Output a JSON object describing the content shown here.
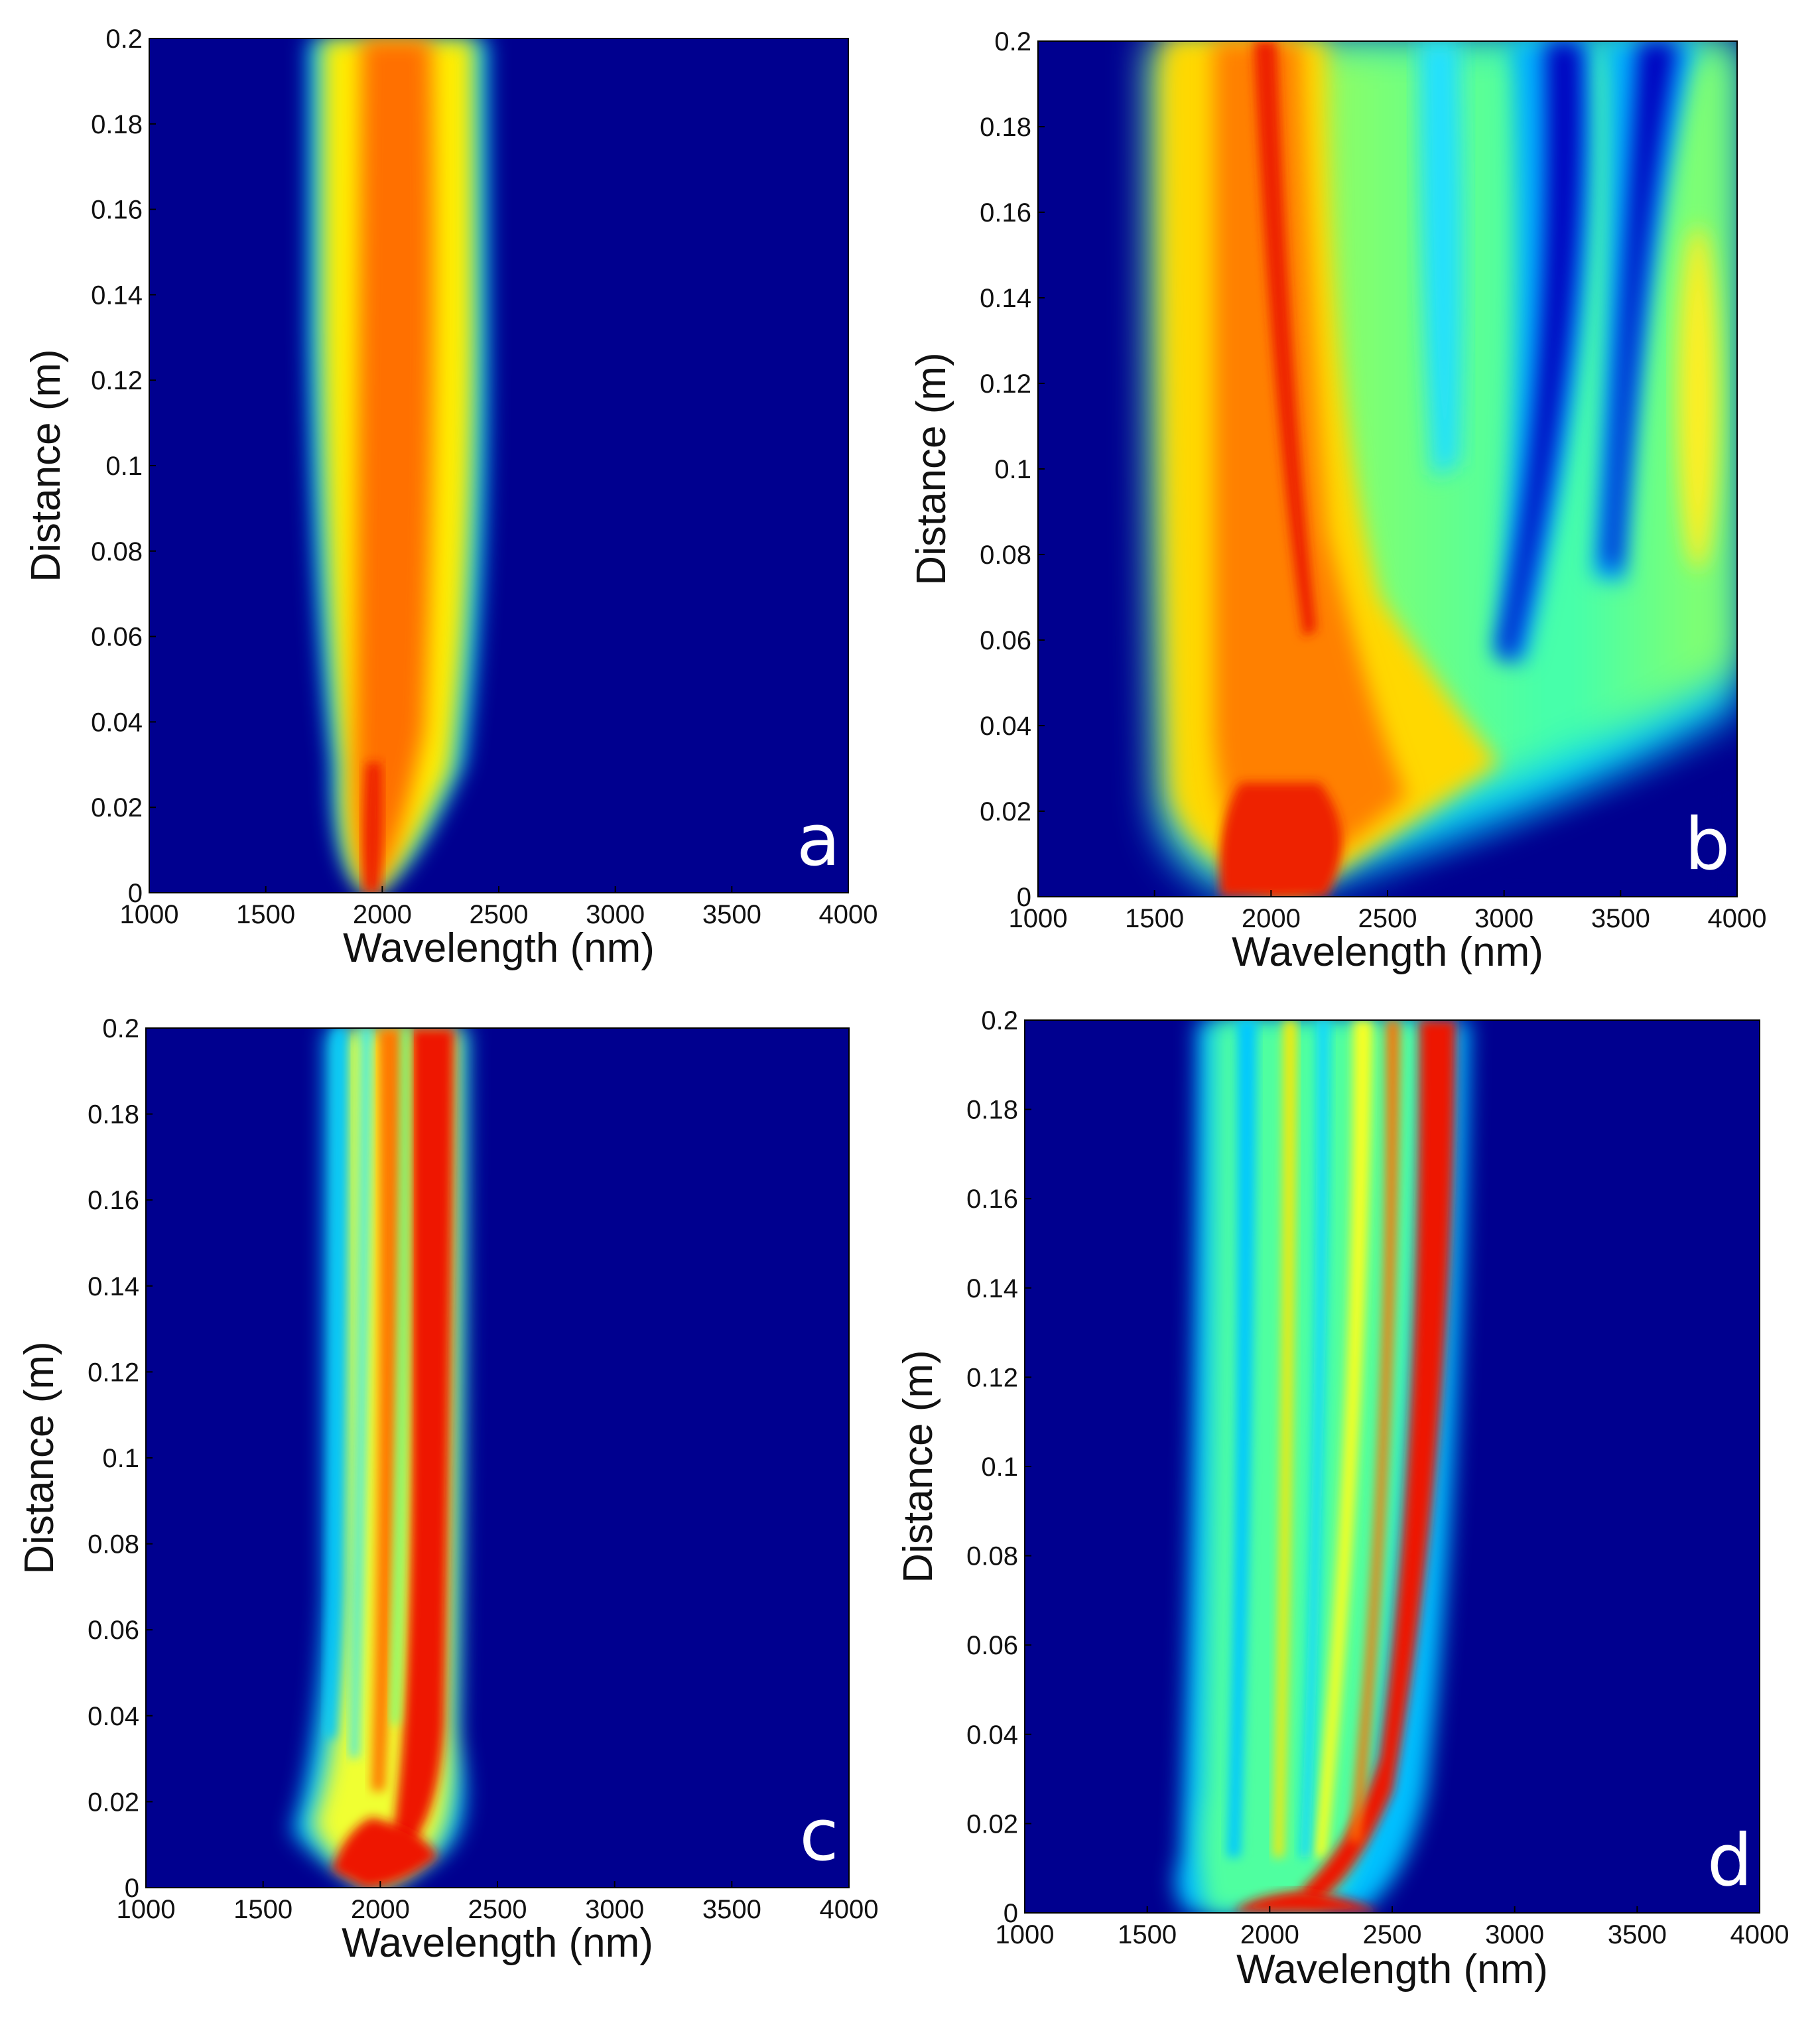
{
  "chart_data": [
    {
      "type": "heatmap",
      "panel_label": "a",
      "xlabel": "Wavelength (nm)",
      "ylabel": "Distance (m)",
      "xlim": [
        1000,
        4000
      ],
      "ylim": [
        0,
        0.2
      ],
      "x_ticks": [
        "1000",
        "1500",
        "2000",
        "2500",
        "3000",
        "3500",
        "4000"
      ],
      "y_ticks": [
        "0",
        "0.02",
        "0.04",
        "0.06",
        "0.08",
        "0.1",
        "0.12",
        "0.14",
        "0.16",
        "0.18",
        "0.2"
      ],
      "colormap": "jet",
      "spectrum_bands": [
        {
          "z": 0.0,
          "lo": 1900,
          "hi": 2000,
          "intensity": 0.9
        },
        {
          "z": 0.01,
          "lo": 1800,
          "hi": 2150,
          "intensity": 0.88
        },
        {
          "z": 0.04,
          "lo": 1740,
          "hi": 2320,
          "intensity": 0.82
        },
        {
          "z": 0.1,
          "lo": 1720,
          "hi": 2380,
          "intensity": 0.8
        },
        {
          "z": 0.2,
          "lo": 1700,
          "hi": 2400,
          "intensity": 0.78
        }
      ]
    },
    {
      "type": "heatmap",
      "panel_label": "b",
      "xlabel": "Wavelength (nm)",
      "ylabel": "Distance (m)",
      "xlim": [
        1000,
        4000
      ],
      "ylim": [
        0,
        0.2
      ],
      "x_ticks": [
        "1000",
        "1500",
        "2000",
        "2500",
        "3000",
        "3500",
        "4000"
      ],
      "y_ticks": [
        "0",
        "0.02",
        "0.04",
        "0.06",
        "0.08",
        "0.1",
        "0.12",
        "0.14",
        "0.16",
        "0.18",
        "0.2"
      ],
      "colormap": "jet",
      "spectrum_bands": [
        {
          "z": 0.0,
          "lo": 1850,
          "hi": 2050,
          "intensity": 0.9
        },
        {
          "z": 0.01,
          "lo": 1550,
          "hi": 2600,
          "intensity": 0.85
        },
        {
          "z": 0.02,
          "lo": 1500,
          "hi": 3600,
          "intensity": 0.7
        },
        {
          "z": 0.04,
          "lo": 1480,
          "hi": 4000,
          "intensity": 0.6
        },
        {
          "z": 0.2,
          "lo": 1480,
          "hi": 4000,
          "intensity": 0.55
        }
      ]
    },
    {
      "type": "heatmap",
      "panel_label": "c",
      "xlabel": "Wavelength (nm)",
      "ylabel": "Distance (m)",
      "xlim": [
        1000,
        4000
      ],
      "ylim": [
        0,
        0.2
      ],
      "x_ticks": [
        "1000",
        "1500",
        "2000",
        "2500",
        "3000",
        "3500",
        "4000"
      ],
      "y_ticks": [
        "0",
        "0.02",
        "0.04",
        "0.06",
        "0.08",
        "0.1",
        "0.12",
        "0.14",
        "0.16",
        "0.18",
        "0.2"
      ],
      "colormap": "jet",
      "spectrum_bands": [
        {
          "z": 0.0,
          "lo": 1900,
          "hi": 2050,
          "intensity": 0.9
        },
        {
          "z": 0.012,
          "lo": 1700,
          "hi": 2350,
          "intensity": 0.85
        },
        {
          "z": 0.04,
          "lo": 1780,
          "hi": 2300,
          "intensity": 0.75
        },
        {
          "z": 0.2,
          "lo": 1780,
          "hi": 2350,
          "intensity": 0.75
        }
      ]
    },
    {
      "type": "heatmap",
      "panel_label": "d",
      "xlabel": "Wavelength (nm)",
      "ylabel": "Distance (m)",
      "xlim": [
        1000,
        4000
      ],
      "ylim": [
        0,
        0.2
      ],
      "x_ticks": [
        "1000",
        "1500",
        "2000",
        "2500",
        "3000",
        "3500",
        "4000"
      ],
      "y_ticks": [
        "0",
        "0.02",
        "0.04",
        "0.06",
        "0.08",
        "0.1",
        "0.12",
        "0.14",
        "0.16",
        "0.18",
        "0.2"
      ],
      "colormap": "jet",
      "spectrum_bands": [
        {
          "z": 0.0,
          "lo": 1800,
          "hi": 2300,
          "intensity": 0.9
        },
        {
          "z": 0.005,
          "lo": 1650,
          "hi": 2650,
          "intensity": 0.8
        },
        {
          "z": 0.05,
          "lo": 1700,
          "hi": 2750,
          "intensity": 0.7
        },
        {
          "z": 0.2,
          "lo": 1700,
          "hi": 2800,
          "intensity": 0.7
        }
      ]
    }
  ]
}
